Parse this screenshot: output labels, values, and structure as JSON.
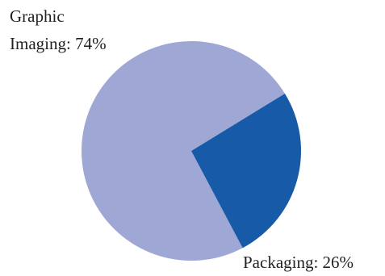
{
  "chart_data": {
    "type": "pie",
    "title": "",
    "slices": [
      {
        "label_lines": [
          "Graphic",
          "Imaging: 74%"
        ],
        "name": "Graphic Imaging",
        "value": 74,
        "color": "#9fa8d5"
      },
      {
        "label_lines": [
          "Packaging: 26%"
        ],
        "name": "Packaging",
        "value": 26,
        "color": "#175aa7"
      }
    ]
  }
}
